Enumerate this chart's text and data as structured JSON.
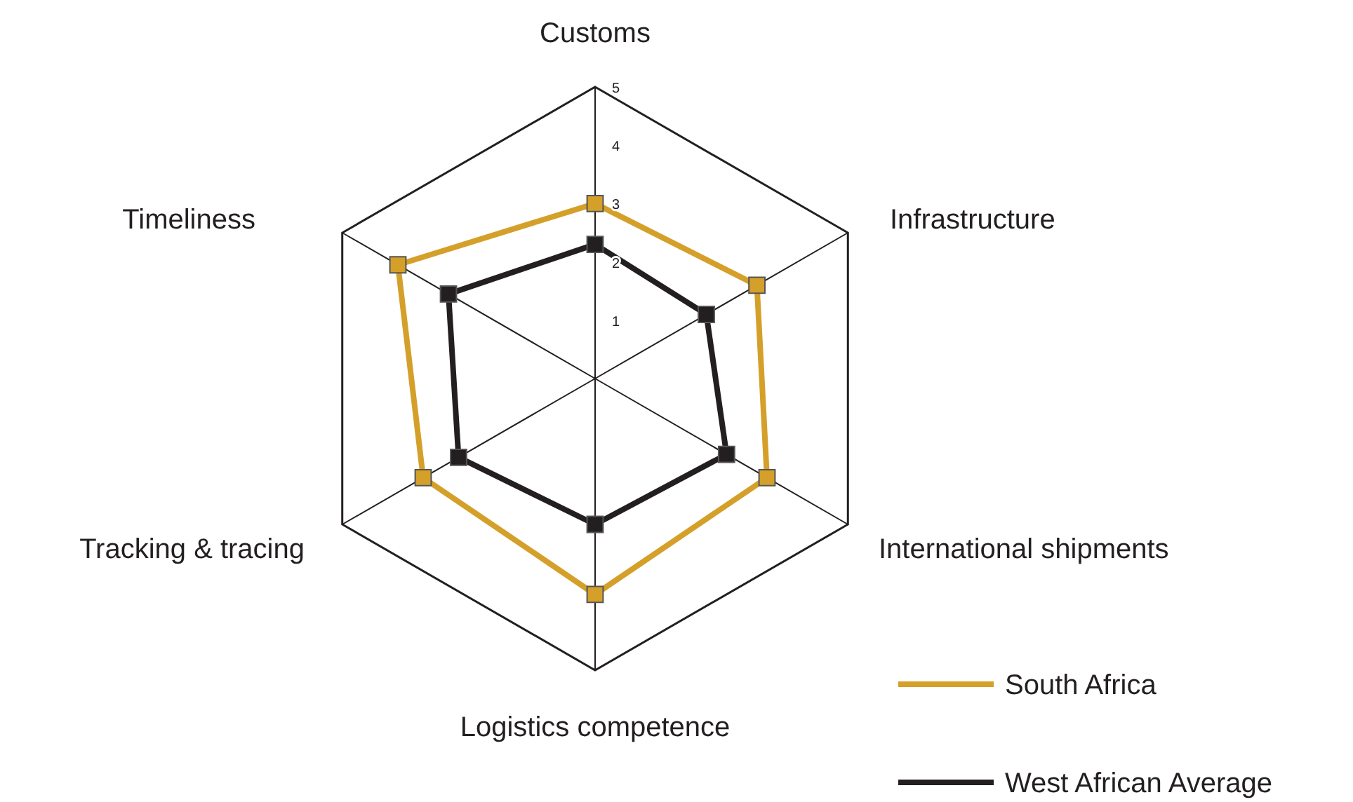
{
  "chart_data": {
    "type": "radar",
    "categories": [
      "Customs",
      "Infrastructure",
      "International shipments",
      "Logistics competence",
      "Tracking & tracing",
      "Timeliness"
    ],
    "series": [
      {
        "name": "South Africa",
        "color": "#d4a02a",
        "values": [
          3.0,
          3.2,
          3.4,
          3.7,
          3.4,
          3.9
        ]
      },
      {
        "name": "West African Average",
        "color": "#231f20",
        "values": [
          2.3,
          2.2,
          2.6,
          2.5,
          2.7,
          2.9
        ]
      }
    ],
    "ylim": [
      0,
      5
    ],
    "yticks": [
      1,
      2,
      3,
      4,
      5
    ],
    "marker": "square",
    "legend": "bottom right"
  }
}
